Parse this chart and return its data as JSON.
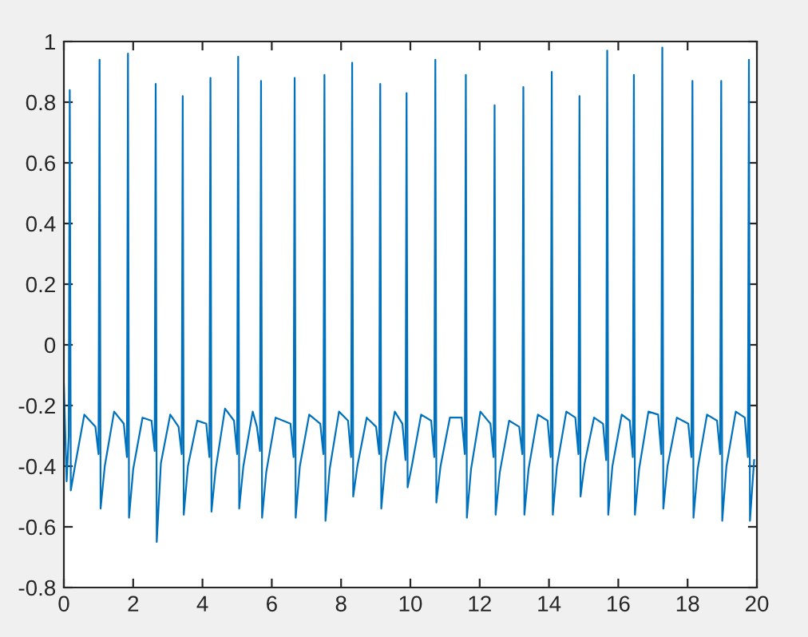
{
  "chart_data": {
    "type": "line",
    "xlim": [
      0,
      20
    ],
    "ylim": [
      -0.8,
      1
    ],
    "xticks": [
      0,
      2,
      4,
      6,
      8,
      10,
      12,
      14,
      16,
      18,
      20
    ],
    "yticks": [
      -0.8,
      -0.6,
      -0.4,
      -0.2,
      0,
      0.2,
      0.4,
      0.6,
      0.8,
      1
    ],
    "series": [
      {
        "color": "#0072bd",
        "x": [
          0,
          0.08,
          0.14,
          0.17,
          0.2,
          0.32,
          0.59,
          0.91,
          1.0,
          1.03,
          1.06,
          1.18,
          1.45,
          1.73,
          1.82,
          1.85,
          1.88,
          2.0,
          2.27,
          2.53,
          2.62,
          2.65,
          2.68,
          2.8,
          3.07,
          3.31,
          3.4,
          3.43,
          3.46,
          3.58,
          3.85,
          4.11,
          4.2,
          4.23,
          4.26,
          4.38,
          4.65,
          4.91,
          5.0,
          5.03,
          5.06,
          5.18,
          5.45,
          5.57,
          5.66,
          5.69,
          5.72,
          5.84,
          6.11,
          6.54,
          6.63,
          6.66,
          6.69,
          6.81,
          7.08,
          7.4,
          7.49,
          7.52,
          7.55,
          7.67,
          7.94,
          8.2,
          8.29,
          8.32,
          8.35,
          8.47,
          8.74,
          9.01,
          9.1,
          9.13,
          9.16,
          9.28,
          9.55,
          9.77,
          9.86,
          9.89,
          9.92,
          10.04,
          10.31,
          10.6,
          10.69,
          10.72,
          10.75,
          10.87,
          11.14,
          11.48,
          11.57,
          11.6,
          11.63,
          11.75,
          12.02,
          12.31,
          12.4,
          12.43,
          12.46,
          12.58,
          12.85,
          13.14,
          13.23,
          13.26,
          13.29,
          13.41,
          13.68,
          13.96,
          14.05,
          14.08,
          14.11,
          14.23,
          14.5,
          14.76,
          14.85,
          14.88,
          14.91,
          15.03,
          15.3,
          15.56,
          15.65,
          15.68,
          15.71,
          15.83,
          16.1,
          16.33,
          16.42,
          16.45,
          16.48,
          16.6,
          16.87,
          17.15,
          17.24,
          17.27,
          17.3,
          17.42,
          17.69,
          18.02,
          18.11,
          18.14,
          18.17,
          18.29,
          18.56,
          18.85,
          18.94,
          18.97,
          19.0,
          19.12,
          19.39,
          19.65,
          19.74,
          19.77,
          19.8,
          19.92
        ],
        "values": [
          -0.13,
          -0.45,
          -0.3,
          0.84,
          -0.48,
          -0.4,
          -0.23,
          -0.27,
          -0.36,
          0.94,
          -0.54,
          -0.4,
          -0.22,
          -0.26,
          -0.37,
          0.96,
          -0.57,
          -0.41,
          -0.24,
          -0.25,
          -0.35,
          0.86,
          -0.65,
          -0.39,
          -0.23,
          -0.27,
          -0.36,
          0.82,
          -0.56,
          -0.4,
          -0.25,
          -0.26,
          -0.37,
          0.88,
          -0.55,
          -0.41,
          -0.21,
          -0.25,
          -0.36,
          0.95,
          -0.54,
          -0.4,
          -0.22,
          -0.27,
          -0.35,
          0.87,
          -0.57,
          -0.42,
          -0.24,
          -0.26,
          -0.37,
          0.88,
          -0.57,
          -0.4,
          -0.23,
          -0.26,
          -0.36,
          0.89,
          -0.58,
          -0.41,
          -0.22,
          -0.25,
          -0.37,
          0.93,
          -0.5,
          -0.4,
          -0.24,
          -0.27,
          -0.36,
          0.86,
          -0.54,
          -0.39,
          -0.22,
          -0.26,
          -0.38,
          0.83,
          -0.47,
          -0.4,
          -0.23,
          -0.25,
          -0.37,
          0.94,
          -0.52,
          -0.4,
          -0.24,
          -0.24,
          -0.36,
          0.89,
          -0.57,
          -0.41,
          -0.22,
          -0.26,
          -0.37,
          0.79,
          -0.56,
          -0.42,
          -0.25,
          -0.27,
          -0.36,
          0.85,
          -0.56,
          -0.41,
          -0.23,
          -0.25,
          -0.37,
          0.9,
          -0.56,
          -0.4,
          -0.22,
          -0.24,
          -0.36,
          0.82,
          -0.5,
          -0.39,
          -0.24,
          -0.26,
          -0.38,
          0.97,
          -0.56,
          -0.4,
          -0.23,
          -0.25,
          -0.37,
          0.89,
          -0.56,
          -0.41,
          -0.22,
          -0.23,
          -0.36,
          0.98,
          -0.54,
          -0.4,
          -0.24,
          -0.26,
          -0.37,
          0.87,
          -0.57,
          -0.41,
          -0.23,
          -0.25,
          -0.36,
          0.87,
          -0.58,
          -0.4,
          -0.22,
          -0.24,
          -0.37,
          0.94,
          -0.58,
          -0.38
        ]
      }
    ]
  }
}
